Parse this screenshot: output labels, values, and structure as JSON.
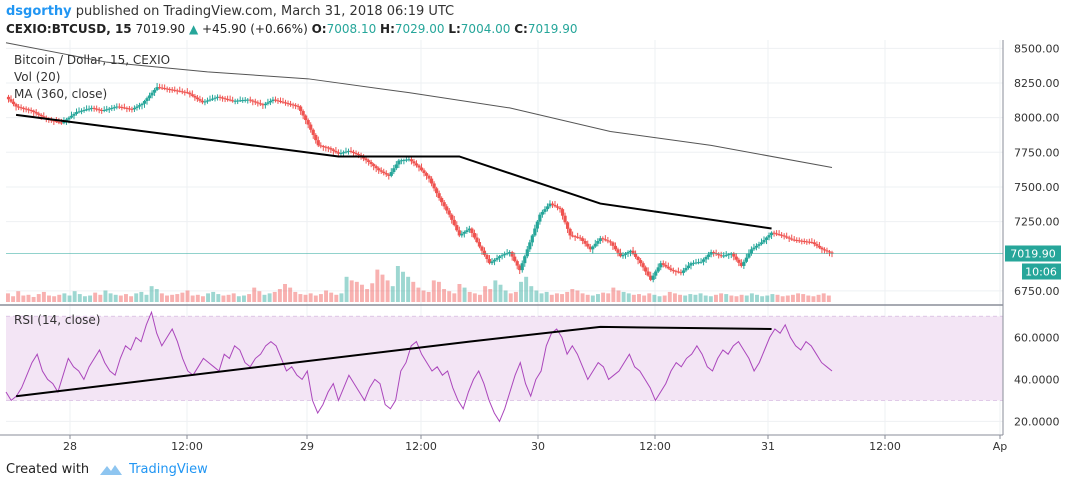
{
  "header": {
    "author": "dsgorthy",
    "published_text": "published on TradingView.com, March 31, 2018 06:19 UTC",
    "symbol_line": "CEXIO:BTCUSD, 15",
    "last": "7019.90",
    "change": "+45.90 (+0.66%)",
    "o_label": "O:",
    "o": "7008.10",
    "h_label": "H:",
    "h": "7029.00",
    "l_label": "L:",
    "l": "7004.00",
    "c_label": "C:",
    "c": "7019.90"
  },
  "footer": {
    "created_with": "Created with",
    "brand": "TradingView"
  },
  "colors": {
    "up": "#26a69a",
    "down": "#ef5350",
    "ma": "#555555",
    "rsi": "#ab47bc",
    "rsi_band": "#f3e5f5"
  },
  "chart_data": [
    {
      "type": "candlestick",
      "title": "Bitcoin / Dollar, 15, CEXIO",
      "legend": [
        "Vol (20)",
        "MA (360, close)"
      ],
      "y_ticks": [
        "8500.00",
        "8250.00",
        "8000.00",
        "7750.00",
        "7500.00",
        "7250.00",
        "6750.00"
      ],
      "ylim": [
        6670,
        8560
      ],
      "last_price_label": "7019.90",
      "countdown_label": "10:06",
      "x_ticks": [
        "28",
        "12:00",
        "29",
        "12:00",
        "30",
        "12:00",
        "31",
        "12:00",
        "Ap"
      ],
      "price_path": [
        [
          0,
          8150
        ],
        [
          2,
          8080
        ],
        [
          5,
          8050
        ],
        [
          8,
          7990
        ],
        [
          11,
          7960
        ],
        [
          14,
          8040
        ],
        [
          17,
          8070
        ],
        [
          19,
          8050
        ],
        [
          22,
          8080
        ],
        [
          25,
          8060
        ],
        [
          27,
          8100
        ],
        [
          30,
          8220
        ],
        [
          33,
          8200
        ],
        [
          36,
          8180
        ],
        [
          39,
          8110
        ],
        [
          42,
          8150
        ],
        [
          45,
          8120
        ],
        [
          48,
          8130
        ],
        [
          51,
          8090
        ],
        [
          53,
          8130
        ],
        [
          56,
          8100
        ],
        [
          58,
          8080
        ],
        [
          60,
          7950
        ],
        [
          62,
          7800
        ],
        [
          64,
          7780
        ],
        [
          66,
          7740
        ],
        [
          68,
          7760
        ],
        [
          70,
          7730
        ],
        [
          72,
          7680
        ],
        [
          74,
          7620
        ],
        [
          76,
          7580
        ],
        [
          78,
          7690
        ],
        [
          80,
          7700
        ],
        [
          82,
          7640
        ],
        [
          84,
          7560
        ],
        [
          86,
          7420
        ],
        [
          88,
          7300
        ],
        [
          90,
          7150
        ],
        [
          92,
          7200
        ],
        [
          94,
          7070
        ],
        [
          96,
          6950
        ],
        [
          98,
          7000
        ],
        [
          100,
          7030
        ],
        [
          102,
          6900
        ],
        [
          104,
          7100
        ],
        [
          106,
          7300
        ],
        [
          108,
          7380
        ],
        [
          110,
          7340
        ],
        [
          112,
          7150
        ],
        [
          114,
          7130
        ],
        [
          116,
          7050
        ],
        [
          118,
          7130
        ],
        [
          120,
          7100
        ],
        [
          122,
          7000
        ],
        [
          124,
          7040
        ],
        [
          126,
          6950
        ],
        [
          128,
          6830
        ],
        [
          130,
          6950
        ],
        [
          132,
          6900
        ],
        [
          134,
          6880
        ],
        [
          136,
          6950
        ],
        [
          138,
          6960
        ],
        [
          140,
          7030
        ],
        [
          142,
          7000
        ],
        [
          144,
          7020
        ],
        [
          146,
          6930
        ],
        [
          148,
          7050
        ],
        [
          150,
          7100
        ],
        [
          152,
          7170
        ],
        [
          154,
          7150
        ],
        [
          156,
          7120
        ],
        [
          158,
          7110
        ],
        [
          160,
          7100
        ],
        [
          162,
          7050
        ],
        [
          164,
          7020
        ]
      ],
      "ma_path": [
        [
          0,
          8540
        ],
        [
          20,
          8400
        ],
        [
          40,
          8330
        ],
        [
          60,
          8280
        ],
        [
          80,
          8180
        ],
        [
          100,
          8070
        ],
        [
          120,
          7900
        ],
        [
          140,
          7800
        ],
        [
          164,
          7640
        ]
      ],
      "trendlines": [
        [
          [
            2,
            8020
          ],
          [
            66,
            7720
          ],
          [
            90,
            7720
          ],
          [
            118,
            7380
          ],
          [
            152,
            7200
          ]
        ]
      ],
      "volume": [
        12,
        8,
        15,
        9,
        10,
        7,
        11,
        14,
        9,
        8,
        10,
        12,
        9,
        15,
        11,
        8,
        9,
        13,
        10,
        16,
        12,
        10,
        9,
        11,
        8,
        12,
        14,
        10,
        22,
        18,
        12,
        9,
        10,
        11,
        13,
        16,
        9,
        10,
        8,
        12,
        14,
        11,
        9,
        10,
        12,
        8,
        9,
        11,
        20,
        15,
        10,
        12,
        14,
        18,
        25,
        20,
        14,
        11,
        10,
        12,
        9,
        11,
        16,
        13,
        10,
        12,
        35,
        30,
        28,
        24,
        18,
        26,
        45,
        38,
        30,
        22,
        50,
        42,
        35,
        28,
        20,
        16,
        14,
        30,
        28,
        18,
        15,
        12,
        25,
        20,
        14,
        12,
        10,
        22,
        18,
        30,
        24,
        16,
        12,
        14,
        28,
        35,
        22,
        16,
        12,
        14,
        10,
        12,
        11,
        14,
        18,
        16,
        12,
        10,
        9,
        11,
        13,
        12,
        20,
        16,
        14,
        12,
        10,
        11,
        9,
        12,
        10,
        8,
        9,
        14,
        12,
        10,
        9,
        11,
        10,
        12,
        9,
        8,
        10,
        12,
        11,
        9,
        8,
        10,
        9,
        12,
        10,
        8,
        9,
        11,
        10,
        8,
        9,
        10,
        12,
        11,
        9,
        8,
        10,
        12,
        9
      ]
    },
    {
      "type": "line",
      "title": "RSI (14, close)",
      "y_ticks": [
        "60.0000",
        "40.0000",
        "20.0000"
      ],
      "ylim": [
        14,
        74
      ],
      "band": [
        30,
        70
      ],
      "series": [
        {
          "values": [
            34,
            30,
            32,
            36,
            42,
            48,
            52,
            44,
            40,
            38,
            34,
            42,
            50,
            46,
            44,
            40,
            46,
            50,
            54,
            48,
            44,
            42,
            50,
            56,
            54,
            60,
            58,
            66,
            72,
            62,
            56,
            60,
            64,
            58,
            50,
            44,
            42,
            46,
            50,
            48,
            46,
            44,
            52,
            50,
            56,
            54,
            48,
            46,
            50,
            52,
            56,
            58,
            56,
            50,
            44,
            46,
            42,
            40,
            44,
            30,
            24,
            28,
            34,
            38,
            30,
            36,
            42,
            38,
            34,
            30,
            36,
            40,
            38,
            28,
            26,
            30,
            44,
            48,
            56,
            58,
            52,
            48,
            44,
            46,
            42,
            44,
            36,
            30,
            26,
            34,
            40,
            44,
            38,
            30,
            24,
            20,
            26,
            34,
            42,
            48,
            38,
            32,
            40,
            44,
            56,
            62,
            64,
            60,
            52,
            56,
            52,
            46,
            40,
            44,
            48,
            46,
            40,
            42,
            44,
            48,
            52,
            46,
            44,
            40,
            36,
            30,
            34,
            38,
            44,
            48,
            46,
            50,
            52,
            56,
            52,
            46,
            44,
            50,
            54,
            52,
            56,
            58,
            54,
            50,
            44,
            48,
            54,
            60,
            64,
            62,
            66,
            60,
            56,
            54,
            58,
            56,
            52,
            48,
            46,
            44
          ]
        }
      ],
      "trendlines": [
        [
          [
            2,
            32
          ],
          [
            92,
            58
          ],
          [
            118,
            65
          ],
          [
            152,
            64
          ]
        ]
      ]
    }
  ]
}
